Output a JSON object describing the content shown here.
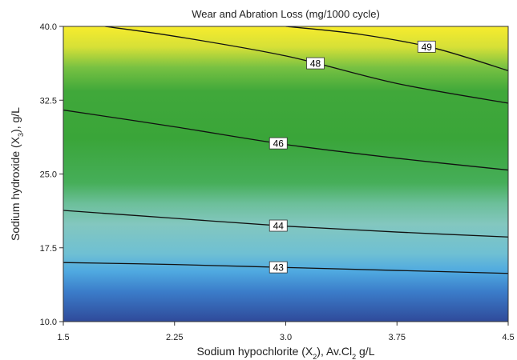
{
  "chart_data": {
    "type": "contour",
    "title": "Wear and Abration Loss (mg/1000 cycle)",
    "xlabel": {
      "main": "Sodium hypochlorite (X",
      "sub": "2",
      "tail": "), Av.Cl",
      "sub2": "2",
      "tail2": " g/L"
    },
    "ylabel": {
      "main": "Sodium hydroxide (X",
      "sub": "3",
      "tail": "), g/L"
    },
    "xlim": [
      1.5,
      4.5
    ],
    "ylim": [
      10.0,
      40.0
    ],
    "x_ticks": [
      "1.5",
      "2.25",
      "3.0",
      "3.75",
      "4.5"
    ],
    "y_ticks": [
      "10.0",
      "17.5",
      "25.0",
      "32.5",
      "40.0"
    ],
    "contours": [
      {
        "level": "43",
        "label_x": 2.95,
        "points": [
          [
            1.5,
            16.0
          ],
          [
            2.25,
            15.8
          ],
          [
            3.0,
            15.5
          ],
          [
            3.75,
            15.2
          ],
          [
            4.5,
            14.9
          ]
        ]
      },
      {
        "level": "44",
        "label_x": 2.95,
        "points": [
          [
            1.5,
            21.3
          ],
          [
            2.25,
            20.5
          ],
          [
            3.0,
            19.7
          ],
          [
            3.75,
            19.1
          ],
          [
            4.5,
            18.6
          ]
        ]
      },
      {
        "level": "46",
        "label_x": 2.95,
        "points": [
          [
            1.5,
            31.5
          ],
          [
            2.25,
            29.8
          ],
          [
            3.0,
            28.0
          ],
          [
            3.75,
            26.6
          ],
          [
            4.5,
            25.4
          ]
        ]
      },
      {
        "level": "48",
        "label_x": 3.2,
        "points": [
          [
            1.78,
            40.0
          ],
          [
            2.25,
            39.0
          ],
          [
            3.0,
            37.0
          ],
          [
            3.75,
            34.2
          ],
          [
            4.5,
            32.2
          ]
        ]
      },
      {
        "level": "49",
        "label_x": 3.95,
        "points": [
          [
            3.0,
            40.0
          ],
          [
            3.5,
            39.2
          ],
          [
            4.0,
            37.8
          ],
          [
            4.5,
            35.5
          ]
        ]
      }
    ],
    "colormap": [
      "#2f4a9a",
      "#3f8fd8",
      "#5fb8d9",
      "#80c7c4",
      "#52b877",
      "#3ca63a",
      "#42aa35",
      "#9fce3c",
      "#f0e732",
      "#f39c2c",
      "#e03a26"
    ],
    "colorbar": false,
    "grid": false
  }
}
